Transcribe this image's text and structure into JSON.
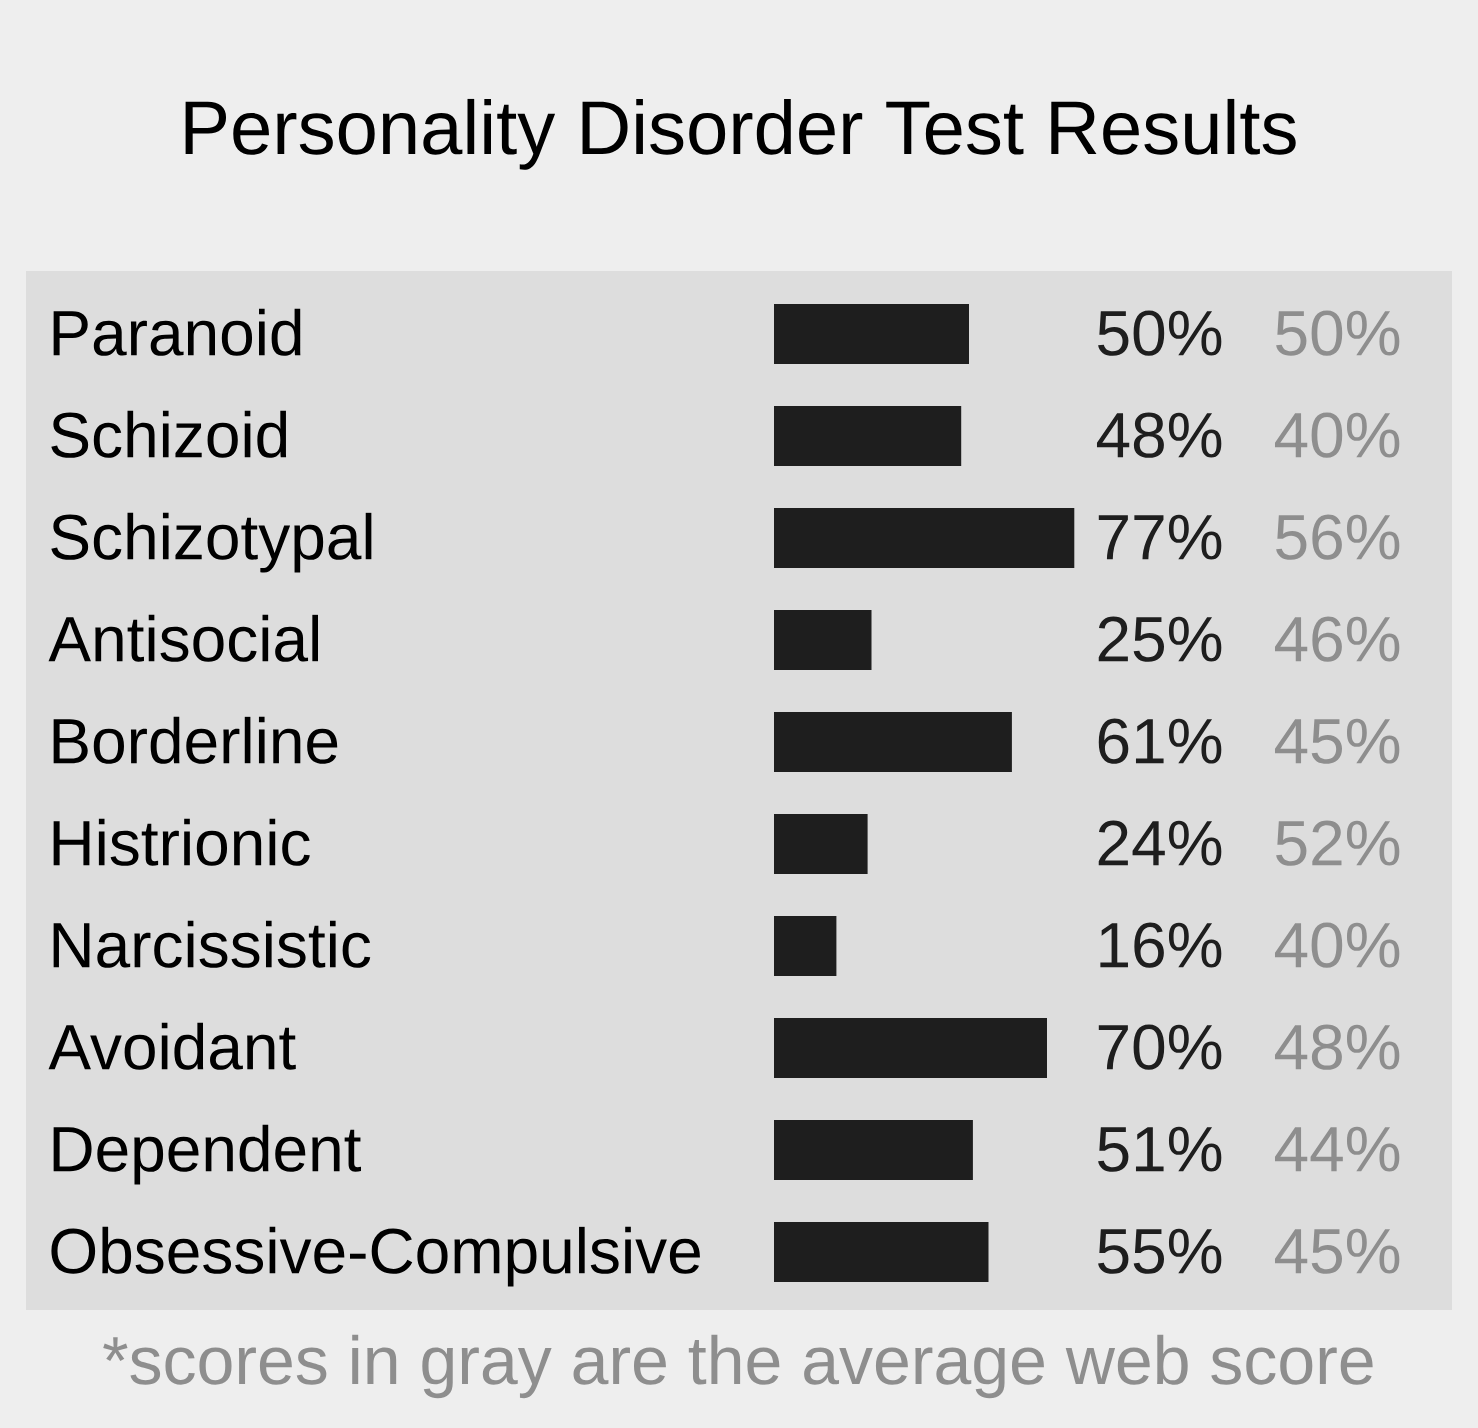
{
  "chart_data": [
    {
      "type": "bar",
      "orientation": "horizontal",
      "title": "Personality Disorder Test Results",
      "categories": [
        "Paranoid",
        "Schizoid",
        "Schizotypal",
        "Antisocial",
        "Borderline",
        "Histrionic",
        "Narcissistic",
        "Avoidant",
        "Dependent",
        "Obsessive-Compulsive"
      ],
      "values": [
        50,
        48,
        77,
        25,
        61,
        24,
        16,
        70,
        51,
        55
      ],
      "color": "#1e1e1e",
      "value_labels": [
        "50%",
        "48%",
        "77%",
        "25%",
        "61%",
        "24%",
        "16%",
        "70%",
        "51%",
        "55%"
      ],
      "annotations": [
        "*scores in gray are the average web score"
      ]
    },
    {
      "type": "other",
      "categories": [
        null,
        null,
        null,
        null,
        null,
        null,
        null,
        null,
        null,
        null
      ],
      "values": [
        50,
        40,
        56,
        46,
        45,
        52,
        40,
        48,
        44,
        45
      ],
      "color": "#8e8e8e",
      "value_labels": [
        "50%",
        "40%",
        "56%",
        "46%",
        "45%",
        "52%",
        "40%",
        "48%",
        "44%",
        "45%"
      ]
    }
  ]
}
